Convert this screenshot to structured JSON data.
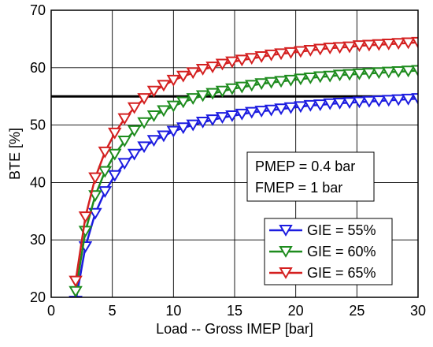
{
  "chart_data": {
    "type": "line",
    "title": "",
    "xlabel": "Load -- Gross IMEP [bar]",
    "ylabel": "BTE [%]",
    "xlim": [
      0,
      30
    ],
    "ylim": [
      20,
      70
    ],
    "xticks": [
      0,
      5,
      10,
      15,
      20,
      25,
      30
    ],
    "yticks": [
      20,
      30,
      40,
      50,
      60,
      70
    ],
    "grid": true,
    "marker": "triangle-down",
    "reference_line": {
      "y": 55,
      "color": "#000000"
    },
    "annotation": [
      "PMEP = 0.4 bar",
      "FMEP = 1 bar"
    ],
    "legend_position": "bottom-right",
    "x": [
      2.0,
      2.8,
      3.6,
      4.4,
      5.2,
      6.0,
      6.8,
      7.6,
      8.4,
      9.2,
      10.0,
      10.8,
      11.6,
      12.4,
      13.2,
      14.0,
      14.8,
      15.6,
      16.4,
      17.2,
      18.0,
      18.8,
      19.6,
      20.4,
      21.2,
      22.0,
      22.8,
      23.6,
      24.4,
      25.2,
      26.0,
      26.8,
      27.6,
      28.4,
      29.2,
      30.0
    ],
    "series": [
      {
        "name": "GIE = 55%",
        "color": "#1c1ce0",
        "values": [
          19.3,
          28.8,
          34.6,
          38.4,
          41.2,
          43.3,
          44.9,
          46.2,
          47.3,
          48.1,
          48.9,
          49.5,
          50.0,
          50.5,
          50.9,
          51.3,
          51.6,
          51.9,
          52.2,
          52.4,
          52.6,
          52.8,
          53.0,
          53.2,
          53.4,
          53.5,
          53.7,
          53.8,
          53.9,
          54.0,
          54.1,
          54.2,
          54.3,
          54.4,
          54.5,
          54.6
        ]
      },
      {
        "name": "GIE = 60%",
        "color": "#1e8c1e",
        "values": [
          21.0,
          31.5,
          37.7,
          41.9,
          44.9,
          47.2,
          49.0,
          50.4,
          51.6,
          52.5,
          53.3,
          54.0,
          54.6,
          55.1,
          55.5,
          55.9,
          56.3,
          56.6,
          56.9,
          57.2,
          57.4,
          57.6,
          57.8,
          58.0,
          58.2,
          58.4,
          58.5,
          58.7,
          58.8,
          58.9,
          59.0,
          59.1,
          59.2,
          59.3,
          59.4,
          59.5
        ]
      },
      {
        "name": "GIE = 65%",
        "color": "#d42020",
        "values": [
          22.8,
          34.0,
          40.8,
          45.3,
          48.6,
          51.1,
          53.0,
          54.6,
          55.9,
          56.9,
          57.8,
          58.5,
          59.1,
          59.7,
          60.1,
          60.6,
          61.0,
          61.3,
          61.6,
          61.9,
          62.2,
          62.4,
          62.6,
          62.8,
          63.0,
          63.2,
          63.4,
          63.5,
          63.6,
          63.8,
          63.9,
          64.0,
          64.1,
          64.2,
          64.3,
          64.4
        ]
      }
    ]
  }
}
